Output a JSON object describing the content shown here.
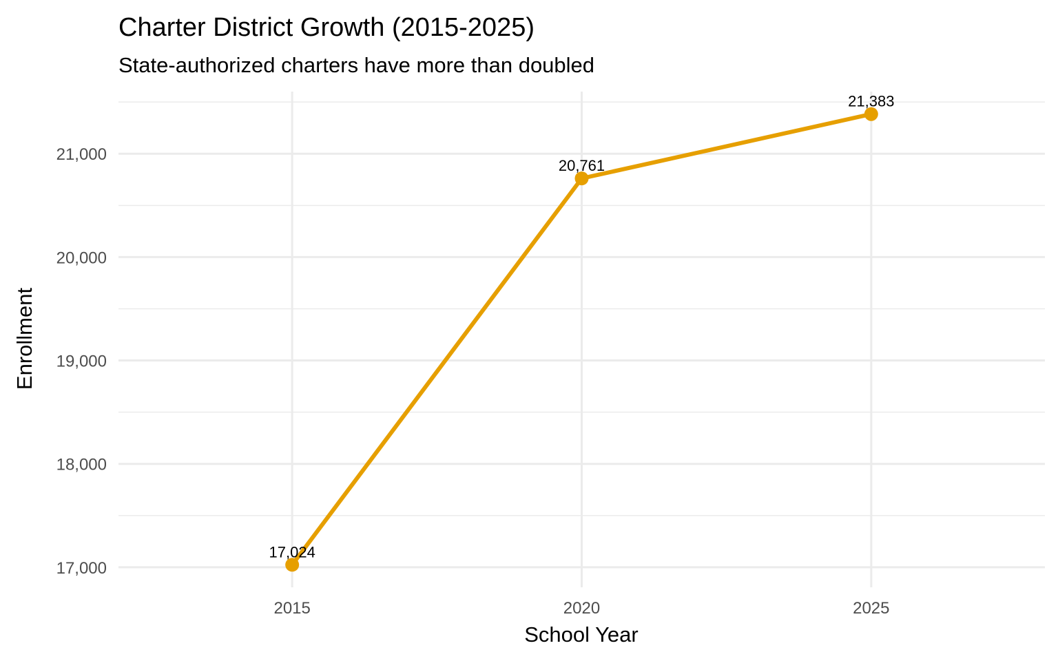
{
  "chart_data": {
    "type": "line",
    "title": "Charter District Growth (2015-2025)",
    "subtitle": "State-authorized charters have more than doubled",
    "xlabel": "School Year",
    "ylabel": "Enrollment",
    "x": [
      2015,
      2020,
      2025
    ],
    "series": [
      {
        "name": "Enrollment",
        "values": [
          17024,
          20761,
          21383
        ],
        "labels": [
          "17,024",
          "20,761",
          "21,383"
        ],
        "color": "#E69F00"
      }
    ],
    "xticks": [
      2015,
      2020,
      2025
    ],
    "xtick_labels": [
      "2015",
      "2020",
      "2025"
    ],
    "yticks": [
      17000,
      18000,
      19000,
      20000,
      21000
    ],
    "ytick_labels": [
      "17,000",
      "18,000",
      "19,000",
      "20,000",
      "21,000"
    ],
    "yminor": [
      17500,
      18500,
      19500,
      20500,
      21500
    ],
    "xlim": [
      2012,
      2028
    ],
    "ylim": [
      16806,
      21601
    ],
    "grid": true,
    "legend": "none"
  }
}
